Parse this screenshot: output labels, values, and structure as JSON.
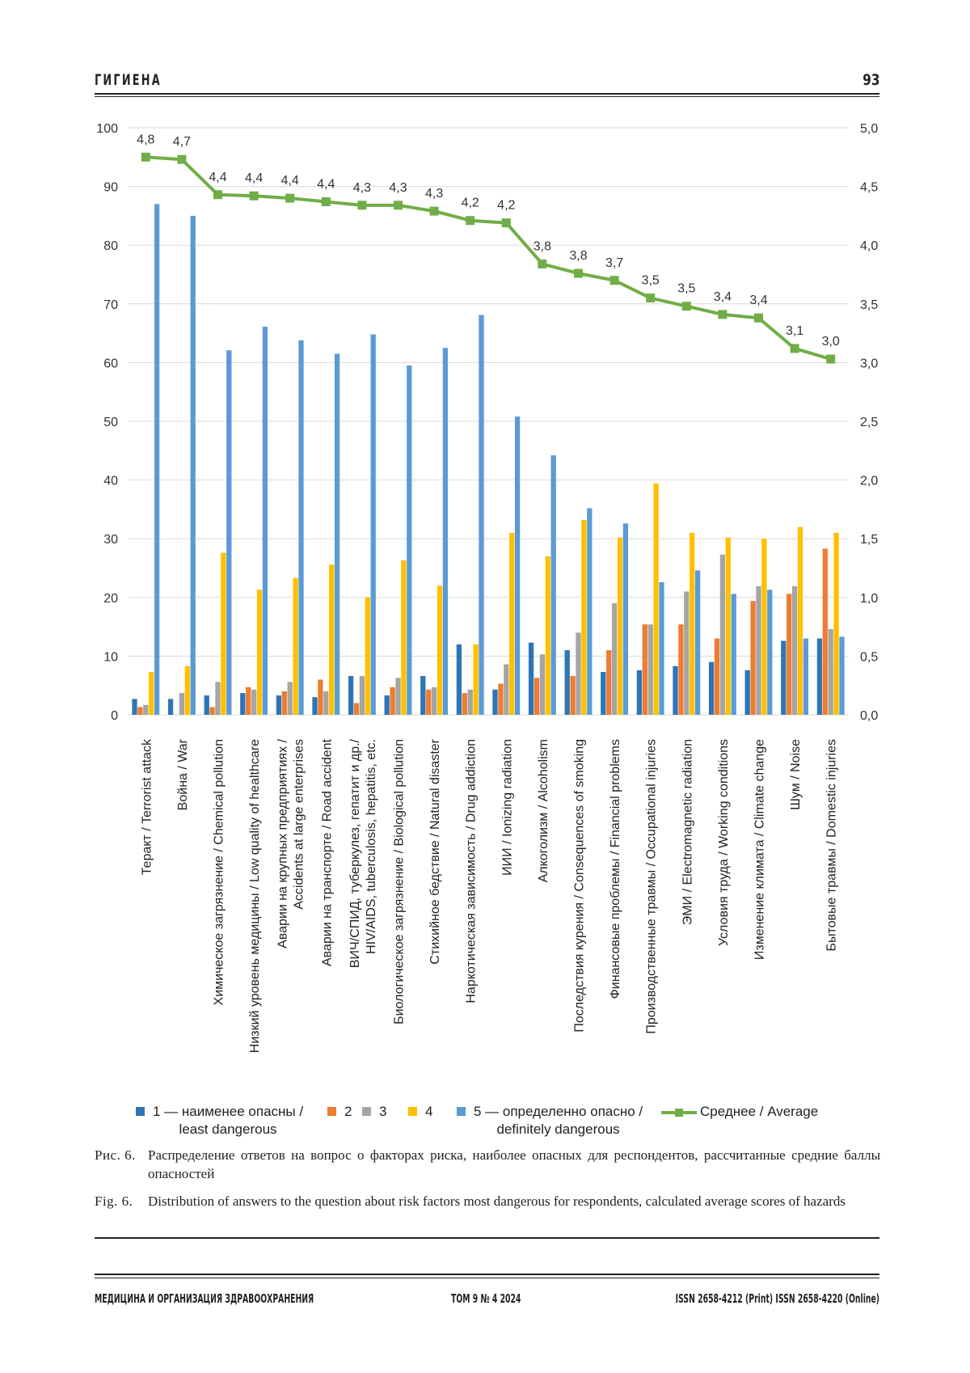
{
  "header": {
    "section": "ГИГИЕНА",
    "page_number": "93"
  },
  "chart_data": {
    "type": "bar",
    "title": "",
    "xlabel": "",
    "ylabel": "",
    "ylim": [
      0,
      100
    ],
    "y2lim": [
      0.0,
      5.0
    ],
    "yticks": [
      "0",
      "10",
      "20",
      "30",
      "40",
      "50",
      "60",
      "70",
      "80",
      "90",
      "100"
    ],
    "y2ticks": [
      "0,0",
      "0,5",
      "1,0",
      "1,5",
      "2,0",
      "2,5",
      "3,0",
      "3,5",
      "4,0",
      "4,5",
      "5,0"
    ],
    "grid": "horizontal",
    "legend_position": "bottom",
    "categories": [
      [
        "Теракт / Terrorist attack"
      ],
      [
        "Война / War"
      ],
      [
        "Химическое загрязнение / Chemical pollution"
      ],
      [
        "Низкий уровень медицины / Low quality of healthcare"
      ],
      [
        "Аварии на крупных предприятиях /",
        "Accidents at large enterprises"
      ],
      [
        "Аварии на транспорте / Road accident"
      ],
      [
        "ВИЧ/СПИД, туберкулез, гепатит и др./",
        "HIV/AIDS, tuberculosis, hepatitis, etc."
      ],
      [
        "Биологическое загрязнение / Biological pollution"
      ],
      [
        "Стихийное бедствие /  Natural disaster"
      ],
      [
        "Наркотическая зависимость / Drug addiction"
      ],
      [
        "ИИИ /  Ionizing radiation"
      ],
      [
        "Алкоголизм /  Alcoholism"
      ],
      [
        "Последствия курения / Consequences of smoking"
      ],
      [
        "Финансовые проблемы /  Financial problems"
      ],
      [
        "Производственные травмы / Occupational injuries"
      ],
      [
        "ЭМИ / Electromagnetic radiation"
      ],
      [
        "Условия труда / Working conditions"
      ],
      [
        "Изменение климата / Climate change"
      ],
      [
        "Шум / Noise"
      ],
      [
        "Бытовые травмы / Domestic injuries"
      ]
    ],
    "series": [
      {
        "name": "1 — наименее опасны / least dangerous",
        "legend_lines": [
          "1 — наименее опасны /",
          "least dangerous"
        ],
        "color": "#2e75b6",
        "values": [
          2.7,
          2.7,
          3.3,
          3.7,
          3.3,
          3.0,
          6.6,
          3.3,
          6.6,
          12.0,
          4.3,
          12.3,
          11.0,
          7.3,
          7.6,
          8.3,
          9.0,
          7.6,
          12.6,
          13.0
        ]
      },
      {
        "name": "2",
        "legend_lines": [
          "2"
        ],
        "color": "#ed7d31",
        "values": [
          1.3,
          0.0,
          1.3,
          4.7,
          4.0,
          6.0,
          2.0,
          4.7,
          4.3,
          3.7,
          5.3,
          6.3,
          6.6,
          11.0,
          15.4,
          15.4,
          13.0,
          19.4,
          20.6,
          28.3
        ]
      },
      {
        "name": "3",
        "legend_lines": [
          "3"
        ],
        "color": "#a5a5a5",
        "values": [
          1.7,
          3.7,
          5.6,
          4.3,
          5.6,
          4.0,
          6.6,
          6.3,
          4.7,
          4.3,
          8.6,
          10.3,
          14.0,
          19.0,
          15.4,
          21.0,
          27.3,
          21.9,
          21.9,
          14.6
        ]
      },
      {
        "name": "4",
        "legend_lines": [
          "4"
        ],
        "color": "#ffc000",
        "values": [
          7.3,
          8.3,
          27.6,
          21.3,
          23.3,
          25.6,
          20.0,
          26.3,
          22.0,
          12.0,
          31.0,
          27.0,
          33.2,
          30.2,
          39.4,
          31.0,
          30.2,
          30.0,
          32.0,
          31.0
        ]
      },
      {
        "name": "5 — определенно опасно / definitely dangerous",
        "legend_lines": [
          "5 — определенно опасно /",
          "definitely dangerous"
        ],
        "color": "#5b9bd5",
        "values": [
          87.0,
          85.0,
          62.1,
          66.1,
          63.8,
          61.5,
          64.8,
          59.5,
          62.5,
          68.1,
          50.8,
          44.2,
          35.2,
          32.6,
          22.6,
          24.6,
          20.6,
          21.3,
          13.0,
          13.3
        ]
      }
    ],
    "line_series": {
      "name": "Среднее / Average",
      "axis": "secondary",
      "color": "#70ad47",
      "values": [
        4.75,
        4.73,
        4.43,
        4.42,
        4.4,
        4.37,
        4.34,
        4.34,
        4.29,
        4.21,
        4.19,
        3.84,
        3.76,
        3.7,
        3.55,
        3.48,
        3.41,
        3.38,
        3.12,
        3.03
      ],
      "labels": [
        "4,8",
        "4,7",
        "4,4",
        "4,4",
        "4,4",
        "4,4",
        "4,3",
        "4,3",
        "4,3",
        "4,2",
        "4,2",
        "3,8",
        "3,8",
        "3,7",
        "3,5",
        "3,5",
        "3,4",
        "3,4",
        "3,1",
        "3,0"
      ]
    }
  },
  "caption_ru": {
    "label": "Рис. 6.",
    "text": "Распределение ответов на вопрос о факторах риска, наиболее опасных для респондентов, рассчитанные средние баллы опасностей"
  },
  "caption_en": {
    "label": "Fig. 6.",
    "text": "Distribution of answers to the question about risk factors most dangerous for respondents, calculated average scores of hazards"
  },
  "footer": {
    "journal": "МЕДИЦИНА И ОРГАНИЗАЦИЯ ЗДРАВООХРАНЕНИЯ",
    "issue": "ТОМ 9  № 4  2024",
    "issn": "ISSN 2658-4212 (Print)  ISSN 2658-4220 (Online)"
  }
}
